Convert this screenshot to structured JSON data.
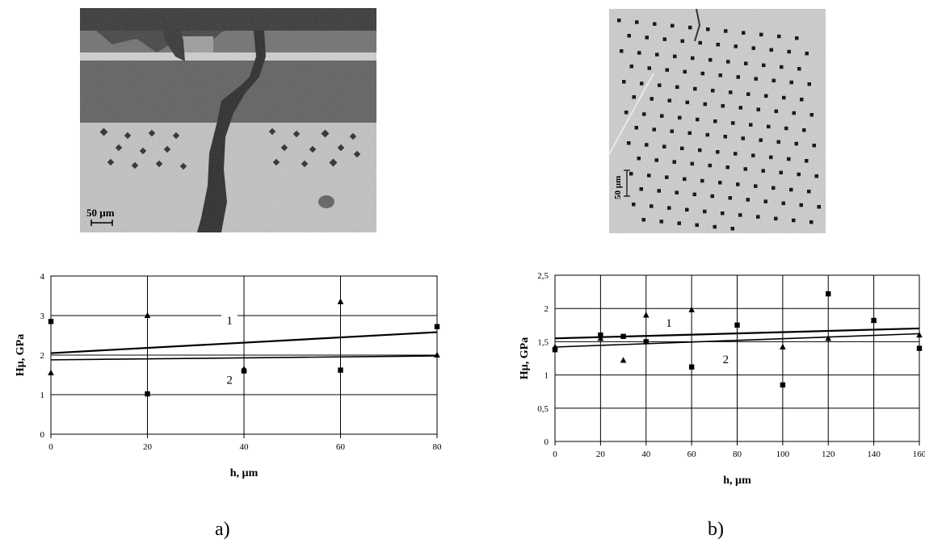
{
  "figure": {
    "caption_a": "a)",
    "caption_b": "b)",
    "micrograph_a_scale": "50 µm",
    "micrograph_b_scale": "50 µm"
  },
  "chart_data": [
    {
      "type": "scatter",
      "panel": "a",
      "xlabel": "h, µm",
      "ylabel": "Hµ, GPa",
      "xlim": [
        0,
        80
      ],
      "ylim": [
        0,
        4
      ],
      "xticks": [
        0,
        20,
        40,
        60,
        80
      ],
      "yticks": [
        0,
        1,
        2,
        3,
        4
      ],
      "grid": true,
      "series": [
        {
          "name": "1",
          "marker": "triangle",
          "points": [
            [
              0,
              1.55
            ],
            [
              20,
              3.0
            ],
            [
              40,
              1.65
            ],
            [
              60,
              3.35
            ],
            [
              80,
              2.0
            ]
          ],
          "trend": [
            [
              0,
              2.05
            ],
            [
              80,
              2.58
            ]
          ]
        },
        {
          "name": "2",
          "marker": "square",
          "points": [
            [
              0,
              2.85
            ],
            [
              20,
              1.02
            ],
            [
              40,
              1.6
            ],
            [
              60,
              1.62
            ],
            [
              80,
              2.72
            ]
          ],
          "trend": [
            [
              0,
              1.88
            ],
            [
              80,
              1.98
            ]
          ]
        }
      ],
      "labels": [
        {
          "text": "1",
          "x": 0,
          "y": 0
        },
        {
          "text": "2",
          "x": 0,
          "y": 0
        }
      ]
    },
    {
      "type": "scatter",
      "panel": "b",
      "xlabel": "h, µm",
      "ylabel": "Hµ, GPa",
      "xlim": [
        0,
        160
      ],
      "ylim": [
        0,
        2.5
      ],
      "xticks": [
        0,
        20,
        40,
        60,
        80,
        100,
        120,
        140,
        160
      ],
      "yticks": [
        0,
        0.5,
        1,
        1.5,
        2,
        2.5
      ],
      "ytick_labels": [
        "0",
        "0,5",
        "1",
        "1,5",
        "2",
        "2,5"
      ],
      "grid": true,
      "series": [
        {
          "name": "1",
          "marker": "triangle",
          "points": [
            [
              0,
              1.42
            ],
            [
              20,
              1.55
            ],
            [
              30,
              1.22
            ],
            [
              40,
              1.9
            ],
            [
              60,
              1.98
            ],
            [
              100,
              1.42
            ],
            [
              120,
              1.55
            ],
            [
              140,
              1.82
            ],
            [
              160,
              1.6
            ]
          ],
          "trend": [
            [
              0,
              1.55
            ],
            [
              160,
              1.7
            ]
          ]
        },
        {
          "name": "2",
          "marker": "square",
          "points": [
            [
              0,
              1.38
            ],
            [
              20,
              1.6
            ],
            [
              30,
              1.58
            ],
            [
              40,
              1.5
            ],
            [
              60,
              1.12
            ],
            [
              80,
              1.75
            ],
            [
              100,
              0.85
            ],
            [
              120,
              2.22
            ],
            [
              140,
              1.82
            ],
            [
              160,
              1.4
            ]
          ],
          "trend": [
            [
              0,
              1.42
            ],
            [
              160,
              1.62
            ]
          ]
        }
      ]
    }
  ]
}
